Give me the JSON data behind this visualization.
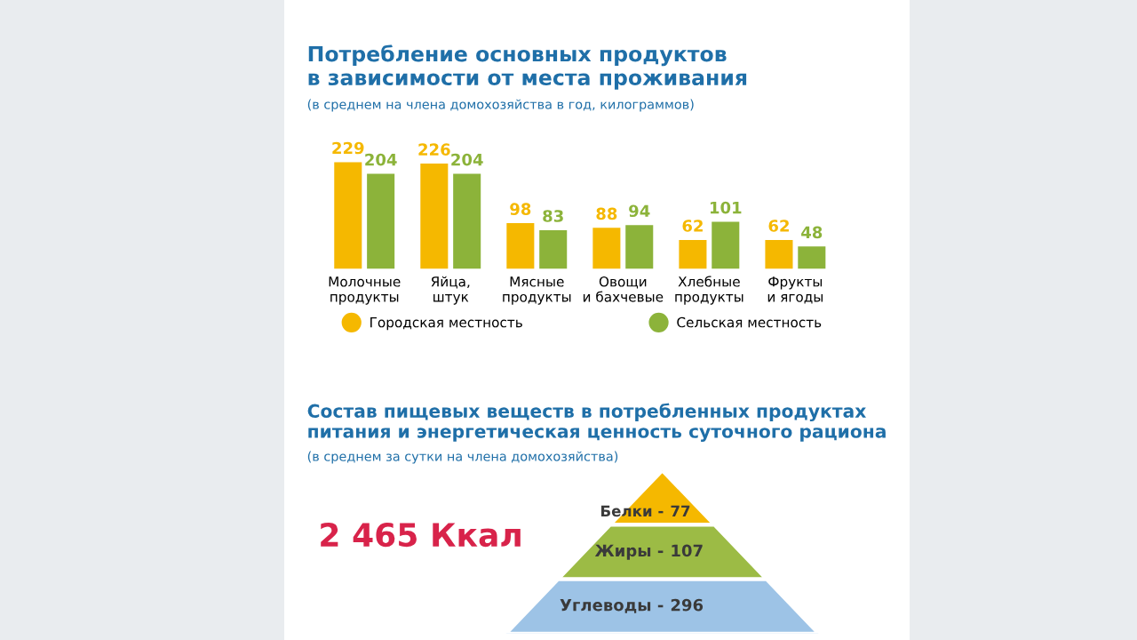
{
  "chart_data": [
    {
      "type": "bar",
      "title": "Потребление основных продуктов\nв зависимости от места проживания",
      "subtitle": "(в среднем на члена домохозяйства в год, килограммов)",
      "categories": [
        "Молочные\nпродукты",
        "Яйца,\nштук",
        "Мясные\nпродукты",
        "Овощи\nи бахчевые",
        "Хлебные\nпродукты",
        "Фрукты\nи ягоды"
      ],
      "series": [
        {
          "name": "Городская местность",
          "color": "#f5b800",
          "values": [
            229,
            226,
            98,
            88,
            62,
            62
          ]
        },
        {
          "name": "Сельская местность",
          "color": "#8cb33a",
          "values": [
            204,
            204,
            83,
            94,
            101,
            48
          ]
        }
      ],
      "data_labels": true,
      "legend": "bottom",
      "grid": false
    },
    {
      "type": "other",
      "title": "Состав пищевых веществ в потребленных продуктах\nпитания и энергетическая ценность суточного рациона",
      "subtitle": "(в среднем за сутки на члена домохозяйства)",
      "categories": [
        "Белки -",
        "Жиры -",
        "Углеводы -"
      ],
      "values": [
        77,
        107,
        296
      ],
      "data_labels": true,
      "colors": [
        "#f5b800",
        "#9cbb45",
        "#9dc3e6"
      ],
      "annotations": [
        "2 465 Ккал"
      ]
    }
  ]
}
